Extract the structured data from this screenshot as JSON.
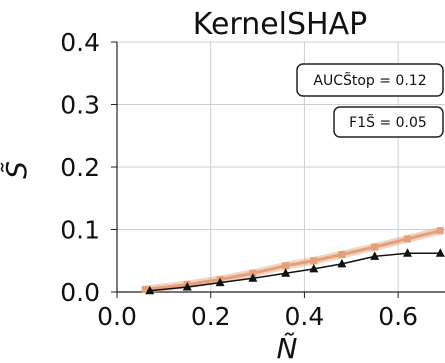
{
  "chart_data": {
    "type": "line",
    "title": "KernelSHAP",
    "xlabel": "Ñ",
    "ylabel": "S̃",
    "xlim": [
      0.0,
      0.7
    ],
    "ylim": [
      0.0,
      0.4
    ],
    "x_ticks": [
      "0.0",
      "0.2",
      "0.4",
      "0.6"
    ],
    "y_ticks": [
      "0.0",
      "0.1",
      "0.2",
      "0.3",
      "0.4"
    ],
    "grid": true,
    "annotations": [
      "AUCS̃top = 0.12",
      "F1S̃ = 0.05"
    ],
    "series": [
      {
        "color": "#e3a07a",
        "band": true,
        "marker": "square",
        "x": [
          0.06,
          0.15,
          0.22,
          0.29,
          0.36,
          0.42,
          0.48,
          0.55,
          0.62,
          0.69
        ],
        "y": [
          0.004,
          0.012,
          0.02,
          0.03,
          0.042,
          0.05,
          0.06,
          0.072,
          0.085,
          0.098
        ]
      },
      {
        "color": "#111111",
        "band": false,
        "marker": "triangle",
        "x": [
          0.07,
          0.15,
          0.22,
          0.29,
          0.36,
          0.42,
          0.48,
          0.55,
          0.62,
          0.69
        ],
        "y": [
          0.002,
          0.008,
          0.015,
          0.022,
          0.03,
          0.037,
          0.045,
          0.057,
          0.062,
          0.062
        ]
      }
    ]
  }
}
